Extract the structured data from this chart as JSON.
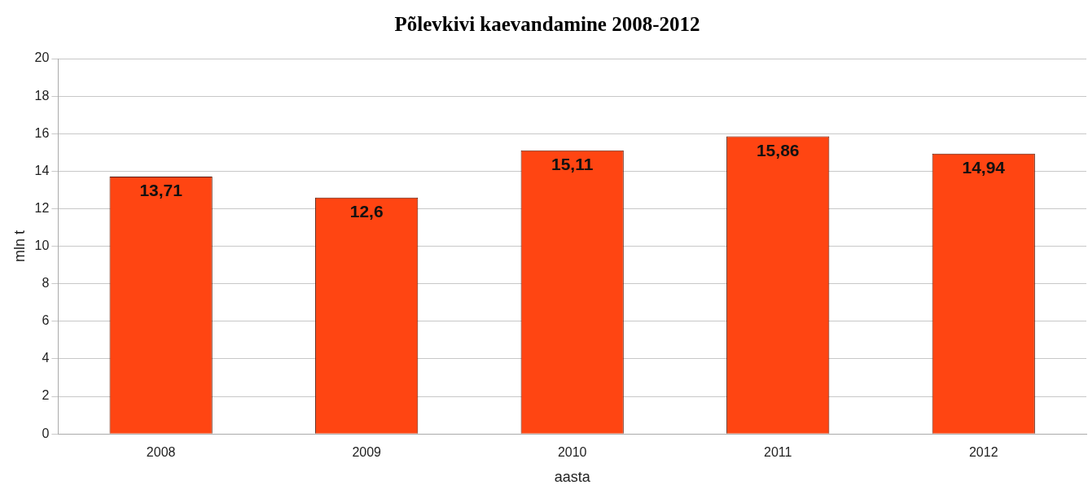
{
  "chart_data": {
    "type": "bar",
    "title": "Põlevkivi kaevandamine 2008-2012",
    "xlabel": "aasta",
    "ylabel": "mln t",
    "categories": [
      "2008",
      "2009",
      "2010",
      "2011",
      "2012"
    ],
    "values": [
      13.71,
      12.6,
      15.11,
      15.86,
      14.94
    ],
    "value_labels": [
      "13,71",
      "12,6",
      "15,11",
      "15,86",
      "14,94"
    ],
    "color": "#ff4512",
    "ylim": [
      0,
      20
    ],
    "yticks": [
      0,
      2,
      4,
      6,
      8,
      10,
      12,
      14,
      16,
      18,
      20
    ],
    "grid": "y",
    "legend": false
  }
}
